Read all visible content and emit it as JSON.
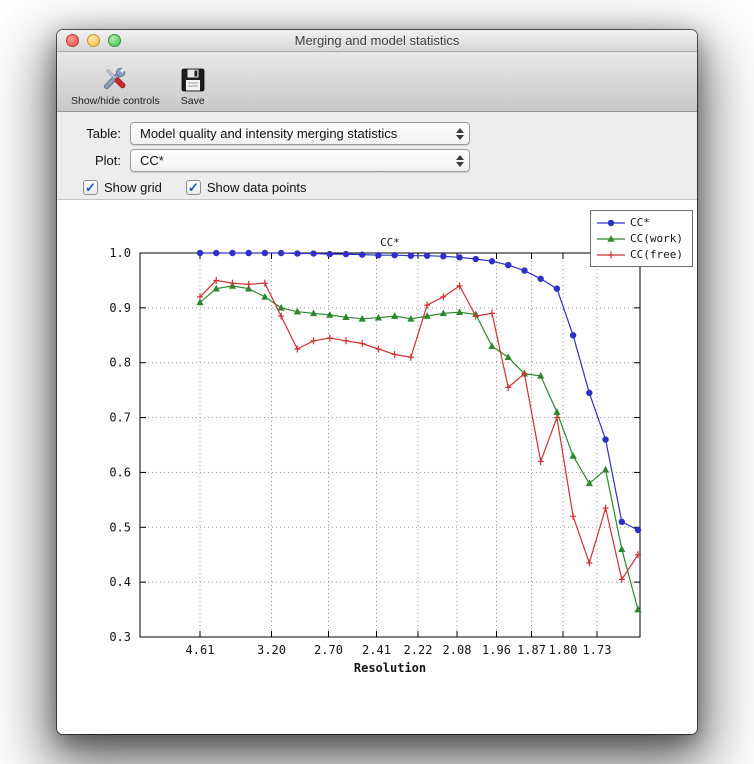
{
  "window": {
    "title": "Merging and model statistics"
  },
  "toolbar": {
    "buttons": [
      {
        "label": "Show/hide controls",
        "icon": "tools-icon"
      },
      {
        "label": "Save",
        "icon": "save-icon"
      }
    ]
  },
  "controls": {
    "table": {
      "label": "Table:",
      "value": "Model quality and intensity merging statistics"
    },
    "plot": {
      "label": "Plot:",
      "value": "CC*"
    },
    "checkboxes": [
      {
        "label": "Show grid",
        "checked": true,
        "glyph": "✓"
      },
      {
        "label": "Show data points",
        "checked": true,
        "glyph": "✓"
      }
    ]
  },
  "chart_data": {
    "type": "line",
    "title": "CC*",
    "xlabel": "Resolution",
    "ylabel": "",
    "ylim": [
      0.3,
      1.0
    ],
    "yticks": [
      1.0,
      0.9,
      0.8,
      0.7,
      0.6,
      0.5,
      0.4,
      0.3
    ],
    "grid": true,
    "show_points": true,
    "legend_position": "top-right",
    "x_start": 0.12,
    "x_end": 0.996,
    "xticks": [
      {
        "label": "4.61",
        "pos": 0.12
      },
      {
        "label": "3.20",
        "pos": 0.263
      },
      {
        "label": "2.70",
        "pos": 0.377
      },
      {
        "label": "2.41",
        "pos": 0.473
      },
      {
        "label": "2.22",
        "pos": 0.556
      },
      {
        "label": "2.08",
        "pos": 0.634
      },
      {
        "label": "1.96",
        "pos": 0.713
      },
      {
        "label": "1.87",
        "pos": 0.783
      },
      {
        "label": "1.80",
        "pos": 0.846
      },
      {
        "label": "1.73",
        "pos": 0.914
      }
    ],
    "series": [
      {
        "name": "CC*",
        "color": "#3030c8",
        "marker": "circle",
        "values": [
          1.0,
          1.0,
          1.0,
          1.0,
          1.0,
          1.0,
          0.999,
          0.999,
          0.998,
          0.998,
          0.997,
          0.996,
          0.996,
          0.995,
          0.995,
          0.994,
          0.992,
          0.989,
          0.985,
          0.978,
          0.968,
          0.953,
          0.935,
          0.85,
          0.745,
          0.66,
          0.51,
          0.495
        ]
      },
      {
        "name": "CC(work)",
        "color": "#2c882c",
        "marker": "triangle",
        "values": [
          0.91,
          0.935,
          0.94,
          0.935,
          0.92,
          0.9,
          0.893,
          0.89,
          0.887,
          0.883,
          0.88,
          0.882,
          0.885,
          0.88,
          0.885,
          0.89,
          0.892,
          0.888,
          0.83,
          0.81,
          0.78,
          0.776,
          0.71,
          0.63,
          0.58,
          0.605,
          0.46,
          0.35
        ]
      },
      {
        "name": "CC(free)",
        "color": "#cc3232",
        "marker": "plus",
        "values": [
          0.92,
          0.95,
          0.945,
          0.943,
          0.945,
          0.885,
          0.825,
          0.84,
          0.845,
          0.84,
          0.835,
          0.825,
          0.815,
          0.81,
          0.905,
          0.92,
          0.94,
          0.885,
          0.89,
          0.755,
          0.78,
          0.62,
          0.7,
          0.52,
          0.435,
          0.535,
          0.405,
          0.45
        ]
      }
    ]
  }
}
